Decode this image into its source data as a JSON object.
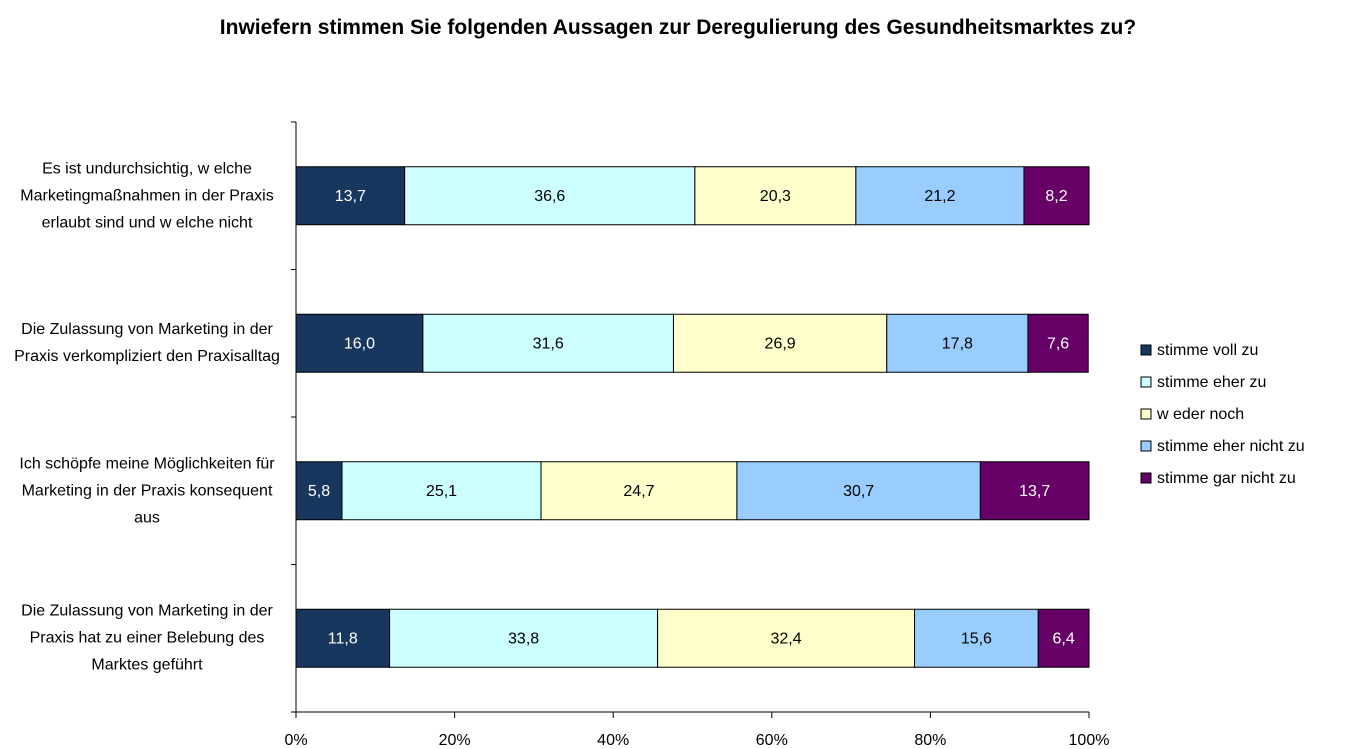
{
  "chart_data": {
    "type": "stacked_barh",
    "title": "Inwiefern stimmen Sie folgenden Aussagen zur Deregulierung des Gesundheitsmarktes zu?",
    "categories": [
      "Es ist undurchsichtig, w elche Marketingmaßnahmen in der Praxis erlaubt sind und w elche nicht",
      "Die Zulassung von Marketing in der Praxis verkompliziert den Praxisalltag",
      "Ich schöpfe meine Möglichkeiten für Marketing in der Praxis konsequent aus",
      "Die Zulassung von Marketing in der Praxis hat zu einer Belebung des Marktes geführt"
    ],
    "series": [
      {
        "name": "stimme voll zu",
        "color": "#17375e",
        "values": [
          13.7,
          16.0,
          5.8,
          11.8
        ],
        "value_labels": [
          "13,7",
          "16,0",
          "5,8",
          "11,8"
        ]
      },
      {
        "name": "stimme eher zu",
        "color": "#ccffff",
        "values": [
          36.6,
          31.6,
          25.1,
          33.8
        ],
        "value_labels": [
          "36,6",
          "31,6",
          "25,1",
          "33,8"
        ]
      },
      {
        "name": "w eder noch",
        "color": "#ffffcc",
        "values": [
          20.3,
          26.9,
          24.7,
          32.4
        ],
        "value_labels": [
          "20,3",
          "26,9",
          "24,7",
          "32,4"
        ]
      },
      {
        "name": "stimme eher nicht zu",
        "color": "#99ccff",
        "values": [
          21.2,
          17.8,
          30.7,
          15.6
        ],
        "value_labels": [
          "21,2",
          "17,8",
          "30,7",
          "15,6"
        ]
      },
      {
        "name": "stimme gar nicht zu",
        "color": "#660066",
        "values": [
          8.2,
          7.6,
          13.7,
          6.4
        ],
        "value_labels": [
          "8,2",
          "7,6",
          "13,7",
          "6,4"
        ]
      }
    ],
    "xlim": [
      0,
      100
    ],
    "xticks": [
      {
        "value": 0,
        "label": "0%"
      },
      {
        "value": 20,
        "label": "20%"
      },
      {
        "value": 40,
        "label": "40%"
      },
      {
        "value": 60,
        "label": "60%"
      },
      {
        "value": 80,
        "label": "80%"
      },
      {
        "value": 100,
        "label": "100%"
      }
    ],
    "legend": "right"
  }
}
